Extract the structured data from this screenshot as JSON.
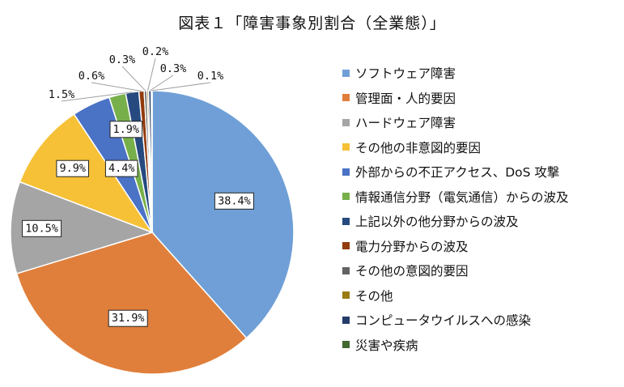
{
  "chart_data": {
    "type": "pie",
    "title": "図表１「障害事象別割合（全業態）」",
    "start_angle_deg": 0,
    "direction": "clockwise",
    "legend_position": "right",
    "slices": [
      {
        "name": "ソフトウェア障害",
        "value": 38.4,
        "label": "38.4%",
        "color": "#6f9fd6"
      },
      {
        "name": "管理面・人的要因",
        "value": 31.9,
        "label": "31.9%",
        "color": "#e07f3b"
      },
      {
        "name": "ハードウェア障害",
        "value": 10.5,
        "label": "10.5%",
        "color": "#a5a5a5"
      },
      {
        "name": "その他の非意図的要因",
        "value": 9.9,
        "label": "9.9%",
        "color": "#f6c137"
      },
      {
        "name": "外部からの不正アクセス、DoS 攻撃",
        "value": 4.4,
        "label": "4.4%",
        "color": "#4a72c5"
      },
      {
        "name": "情報通信分野（電気通信）からの波及",
        "value": 1.9,
        "label": "1.9%",
        "color": "#77b04a"
      },
      {
        "name": "上記以外の他分野からの波及",
        "value": 1.5,
        "label": "1.5%",
        "color": "#264a80"
      },
      {
        "name": "電力分野からの波及",
        "value": 0.6,
        "label": "0.6%",
        "color": "#923b0e"
      },
      {
        "name": "その他の意図的要因",
        "value": 0.3,
        "label": "0.3%",
        "color": "#626262"
      },
      {
        "name": "その他",
        "value": 0.2,
        "label": "0.2%",
        "color": "#9a7a12"
      },
      {
        "name": "コンピュータウイルスへの感染",
        "value": 0.3,
        "label": "0.3%",
        "color": "#243c69"
      },
      {
        "name": "災害や疾病",
        "value": 0.1,
        "label": "0.1%",
        "color": "#426a30"
      }
    ]
  }
}
